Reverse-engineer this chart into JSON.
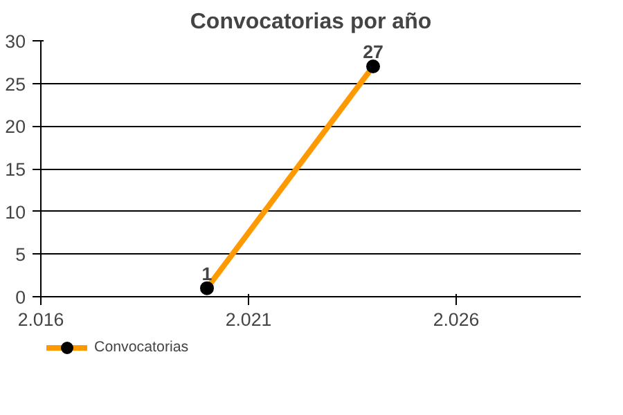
{
  "chart_data": {
    "type": "line",
    "title": "Convocatorias por año",
    "x": [
      2020,
      2024
    ],
    "series": [
      {
        "name": "Convocatorias",
        "color": "#ff9900",
        "values": [
          1,
          27
        ]
      }
    ],
    "xlim": [
      2016,
      2029
    ],
    "xticks": [
      {
        "value": 2016,
        "label": "2.016"
      },
      {
        "value": 2021,
        "label": "2.021"
      },
      {
        "value": 2026,
        "label": "2.026"
      }
    ],
    "ylim": [
      0,
      30
    ],
    "yticks": [
      0,
      5,
      10,
      15,
      20,
      25,
      30
    ],
    "grid": "y",
    "legend": "bottom left",
    "marker": "circle",
    "data_labels": true
  }
}
